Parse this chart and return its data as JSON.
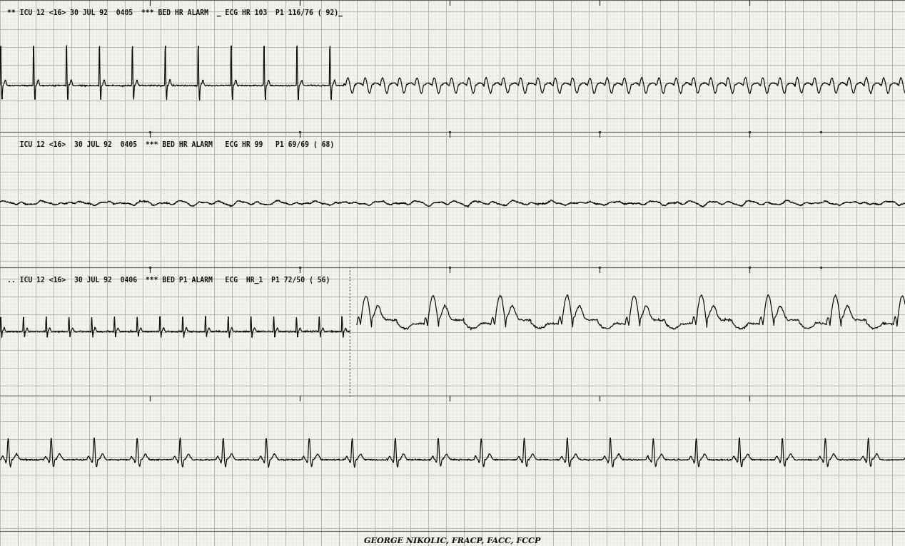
{
  "bg_color": "#f4f4f0",
  "grid_major_color": "#b8b8b0",
  "grid_minor_color": "#d8d8d0",
  "ecg_color": "#111111",
  "line1_header": "** ICU 12 <16> 30 JUL 92  0405  *** BED HR ALARM  _ ECG HR 103  P1 116/76 ( 92)_",
  "line2_header": "   ICU 12 <16>  30 JUL 92  0405  *** BED HR ALARM   ECG HR 99   P1 69/69 ( 68)",
  "line3_header": ".. ICU 12 <16>  30 JUL 92  0406  *** BED P1 ALARM   ECG  HR_1  P1 72/50 ( 56)",
  "footer": "GEORGE NIKOLIC, FRACP, FACC, FCCP",
  "header_fontsize": 7.0,
  "footer_fontsize": 8.0
}
